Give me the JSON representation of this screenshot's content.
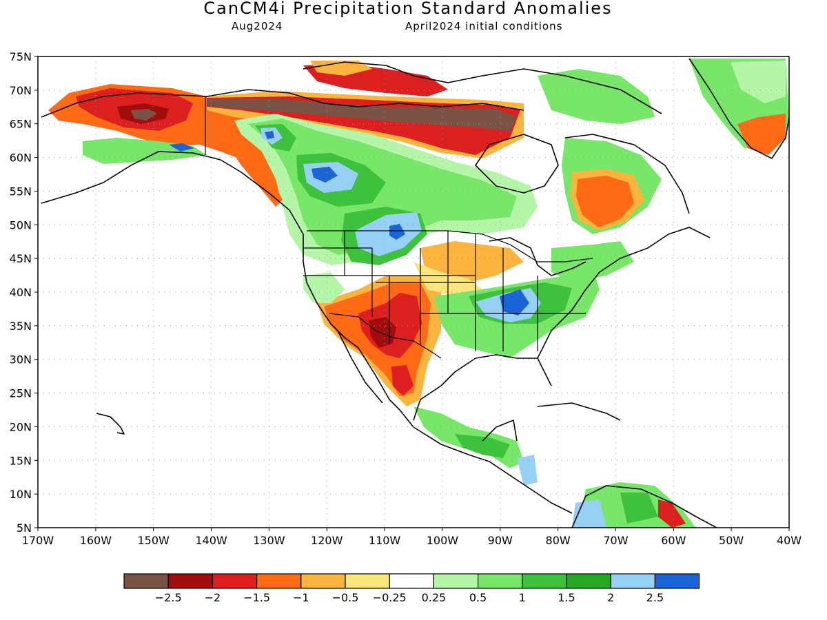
{
  "header": {
    "title": "CanCM4i Precipitation Standard Anomalies",
    "target_month": "Aug2024",
    "initial_conditions": "April2024 initial conditions"
  },
  "map": {
    "lat_labels": [
      "75N",
      "70N",
      "65N",
      "60N",
      "55N",
      "50N",
      "45N",
      "40N",
      "35N",
      "30N",
      "25N",
      "20N",
      "15N",
      "10N",
      "5N"
    ],
    "lon_labels": [
      "170W",
      "160W",
      "150W",
      "140W",
      "130W",
      "120W",
      "110W",
      "100W",
      "90W",
      "80W",
      "70W",
      "60W",
      "50W",
      "40W"
    ],
    "lat_range": [
      5,
      75
    ],
    "lon_range": [
      -170,
      -40
    ]
  },
  "legend": {
    "colors": [
      "#7a5345",
      "#a10c0c",
      "#dc1f1f",
      "#ff6a14",
      "#fbb43d",
      "#fbe57d",
      "#ffffff",
      "#b5f5a8",
      "#78e668",
      "#3ec23e",
      "#25a825",
      "#96d0f5",
      "#1a64d6"
    ],
    "labels": [
      "−2.5",
      "−2",
      "−1.5",
      "−1",
      "−0.5",
      "−0.25",
      "0.25",
      "0.5",
      "1",
      "1.5",
      "2",
      "2.5"
    ]
  }
}
